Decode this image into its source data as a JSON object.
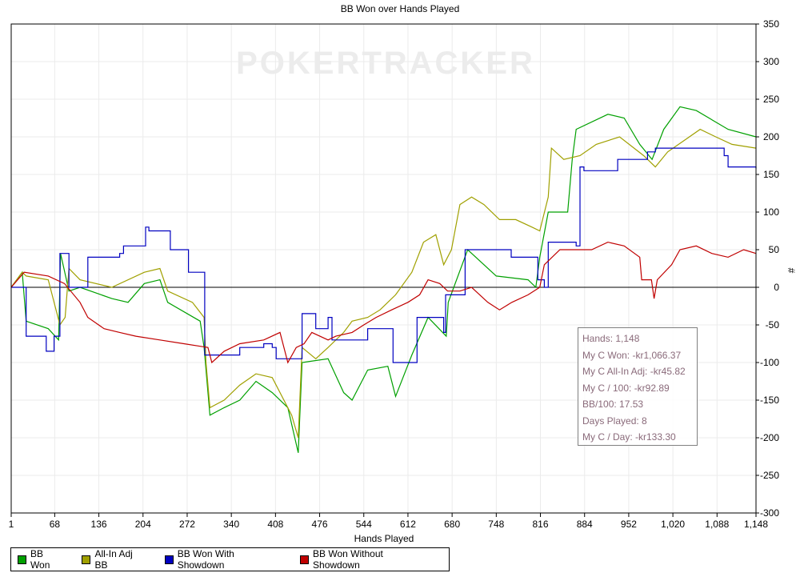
{
  "chart_data": {
    "type": "line",
    "title": "BB Won over Hands Played",
    "xlabel": "Hands Played",
    "ylabel": "#",
    "xlim": [
      1,
      1148
    ],
    "ylim": [
      -300,
      350
    ],
    "xticks": [
      "1",
      "68",
      "136",
      "204",
      "272",
      "340",
      "408",
      "476",
      "544",
      "612",
      "680",
      "748",
      "816",
      "884",
      "952",
      "1,020",
      "1,088",
      "1,148"
    ],
    "xtick_values": [
      1,
      68,
      136,
      204,
      272,
      340,
      408,
      476,
      544,
      612,
      680,
      748,
      816,
      884,
      952,
      1020,
      1088,
      1148
    ],
    "yticks": [
      350,
      300,
      250,
      200,
      150,
      100,
      50,
      0,
      -50,
      -100,
      -150,
      -200,
      -250,
      -300
    ],
    "grid": true,
    "watermark": "POKERTRACKER",
    "legend_position": "bottom",
    "series": [
      {
        "name": "BB Won",
        "color": "#00a000",
        "step": false,
        "points": [
          [
            1,
            0
          ],
          [
            18,
            20
          ],
          [
            24,
            -45
          ],
          [
            58,
            -55
          ],
          [
            74,
            -70
          ],
          [
            77,
            45
          ],
          [
            90,
            -5
          ],
          [
            107,
            0
          ],
          [
            156,
            -15
          ],
          [
            181,
            -20
          ],
          [
            206,
            5
          ],
          [
            230,
            10
          ],
          [
            242,
            -20
          ],
          [
            292,
            -45
          ],
          [
            298,
            -80
          ],
          [
            307,
            -170
          ],
          [
            329,
            -160
          ],
          [
            353,
            -150
          ],
          [
            378,
            -125
          ],
          [
            403,
            -140
          ],
          [
            427,
            -160
          ],
          [
            443,
            -220
          ],
          [
            449,
            -100
          ],
          [
            489,
            -95
          ],
          [
            513,
            -140
          ],
          [
            526,
            -150
          ],
          [
            550,
            -110
          ],
          [
            581,
            -105
          ],
          [
            593,
            -145
          ],
          [
            618,
            -90
          ],
          [
            643,
            -40
          ],
          [
            671,
            -65
          ],
          [
            674,
            -20
          ],
          [
            704,
            50
          ],
          [
            748,
            15
          ],
          [
            797,
            10
          ],
          [
            809,
            0
          ],
          [
            815,
            40
          ],
          [
            828,
            100
          ],
          [
            858,
            100
          ],
          [
            865,
            170
          ],
          [
            871,
            210
          ],
          [
            920,
            230
          ],
          [
            945,
            225
          ],
          [
            969,
            190
          ],
          [
            988,
            170
          ],
          [
            1006,
            210
          ],
          [
            1031,
            240
          ],
          [
            1056,
            235
          ],
          [
            1105,
            210
          ],
          [
            1148,
            200
          ]
        ]
      },
      {
        "name": "All-In Adj BB",
        "color": "#a0a000",
        "step": false,
        "points": [
          [
            1,
            0
          ],
          [
            18,
            20
          ],
          [
            24,
            15
          ],
          [
            58,
            10
          ],
          [
            76,
            -50
          ],
          [
            84,
            -40
          ],
          [
            90,
            25
          ],
          [
            107,
            10
          ],
          [
            156,
            0
          ],
          [
            206,
            20
          ],
          [
            230,
            25
          ],
          [
            242,
            -5
          ],
          [
            280,
            -20
          ],
          [
            298,
            -40
          ],
          [
            301,
            -100
          ],
          [
            307,
            -160
          ],
          [
            329,
            -150
          ],
          [
            353,
            -130
          ],
          [
            378,
            -115
          ],
          [
            403,
            -120
          ],
          [
            421,
            -150
          ],
          [
            433,
            -170
          ],
          [
            443,
            -200
          ],
          [
            449,
            -80
          ],
          [
            470,
            -95
          ],
          [
            489,
            -80
          ],
          [
            513,
            -60
          ],
          [
            526,
            -45
          ],
          [
            550,
            -40
          ],
          [
            569,
            -30
          ],
          [
            593,
            -10
          ],
          [
            618,
            20
          ],
          [
            636,
            60
          ],
          [
            655,
            70
          ],
          [
            667,
            30
          ],
          [
            679,
            50
          ],
          [
            692,
            110
          ],
          [
            710,
            120
          ],
          [
            729,
            110
          ],
          [
            753,
            90
          ],
          [
            778,
            90
          ],
          [
            803,
            80
          ],
          [
            815,
            75
          ],
          [
            828,
            120
          ],
          [
            833,
            185
          ],
          [
            852,
            170
          ],
          [
            877,
            175
          ],
          [
            902,
            190
          ],
          [
            938,
            200
          ],
          [
            975,
            175
          ],
          [
            993,
            160
          ],
          [
            1012,
            180
          ],
          [
            1037,
            195
          ],
          [
            1062,
            210
          ],
          [
            1086,
            200
          ],
          [
            1111,
            190
          ],
          [
            1148,
            185
          ]
        ]
      },
      {
        "name": "BB Won With Showdown",
        "color": "#0000c0",
        "step": true,
        "points": [
          [
            1,
            0
          ],
          [
            24,
            -65
          ],
          [
            51,
            -65
          ],
          [
            55,
            -85
          ],
          [
            67,
            -65
          ],
          [
            76,
            45
          ],
          [
            87,
            45
          ],
          [
            90,
            0
          ],
          [
            119,
            40
          ],
          [
            168,
            45
          ],
          [
            174,
            55
          ],
          [
            205,
            55
          ],
          [
            208,
            80
          ],
          [
            213,
            75
          ],
          [
            242,
            75
          ],
          [
            246,
            50
          ],
          [
            273,
            50
          ],
          [
            274,
            20
          ],
          [
            298,
            20
          ],
          [
            299,
            -90
          ],
          [
            341,
            -90
          ],
          [
            353,
            -80
          ],
          [
            390,
            -75
          ],
          [
            403,
            -80
          ],
          [
            409,
            -95
          ],
          [
            446,
            -95
          ],
          [
            449,
            -35
          ],
          [
            470,
            -55
          ],
          [
            489,
            -40
          ],
          [
            495,
            -70
          ],
          [
            526,
            -70
          ],
          [
            550,
            -55
          ],
          [
            587,
            -55
          ],
          [
            589,
            -100
          ],
          [
            624,
            -100
          ],
          [
            626,
            -40
          ],
          [
            660,
            -40
          ],
          [
            667,
            -60
          ],
          [
            670,
            -10
          ],
          [
            698,
            -10
          ],
          [
            700,
            50
          ],
          [
            747,
            50
          ],
          [
            771,
            40
          ],
          [
            809,
            40
          ],
          [
            812,
            10
          ],
          [
            822,
            0
          ],
          [
            828,
            60
          ],
          [
            865,
            60
          ],
          [
            871,
            55
          ],
          [
            877,
            160
          ],
          [
            883,
            155
          ],
          [
            932,
            155
          ],
          [
            935,
            170
          ],
          [
            969,
            170
          ],
          [
            981,
            180
          ],
          [
            993,
            185
          ],
          [
            1092,
            185
          ],
          [
            1099,
            175
          ],
          [
            1105,
            160
          ],
          [
            1148,
            158
          ]
        ]
      },
      {
        "name": "BB Won Without Showdown",
        "color": "#c00000",
        "step": false,
        "points": [
          [
            1,
            0
          ],
          [
            21,
            20
          ],
          [
            58,
            15
          ],
          [
            83,
            5
          ],
          [
            107,
            -20
          ],
          [
            119,
            -40
          ],
          [
            144,
            -55
          ],
          [
            168,
            -60
          ],
          [
            193,
            -65
          ],
          [
            230,
            -70
          ],
          [
            267,
            -75
          ],
          [
            304,
            -80
          ],
          [
            310,
            -100
          ],
          [
            329,
            -85
          ],
          [
            353,
            -75
          ],
          [
            390,
            -70
          ],
          [
            415,
            -60
          ],
          [
            427,
            -100
          ],
          [
            440,
            -80
          ],
          [
            452,
            -75
          ],
          [
            464,
            -60
          ],
          [
            489,
            -70
          ],
          [
            501,
            -65
          ],
          [
            526,
            -60
          ],
          [
            544,
            -50
          ],
          [
            563,
            -40
          ],
          [
            587,
            -30
          ],
          [
            612,
            -20
          ],
          [
            630,
            -10
          ],
          [
            643,
            10
          ],
          [
            661,
            5
          ],
          [
            673,
            -5
          ],
          [
            692,
            -5
          ],
          [
            710,
            0
          ],
          [
            735,
            -20
          ],
          [
            753,
            -30
          ],
          [
            772,
            -20
          ],
          [
            797,
            -10
          ],
          [
            815,
            0
          ],
          [
            822,
            30
          ],
          [
            846,
            50
          ],
          [
            871,
            50
          ],
          [
            895,
            50
          ],
          [
            920,
            60
          ],
          [
            945,
            55
          ],
          [
            969,
            40
          ],
          [
            972,
            10
          ],
          [
            987,
            10
          ],
          [
            991,
            -15
          ],
          [
            996,
            10
          ],
          [
            1018,
            30
          ],
          [
            1031,
            50
          ],
          [
            1056,
            55
          ],
          [
            1080,
            45
          ],
          [
            1105,
            40
          ],
          [
            1129,
            50
          ],
          [
            1148,
            45
          ]
        ]
      }
    ]
  },
  "stats": [
    "Hands: 1,148",
    "My C Won: -kr1,066.37",
    "My C All-In Adj: -kr45.82",
    "My C / 100: -kr92.89",
    "BB/100: 17.53",
    "Days Played: 8",
    "My C / Day: -kr133.30"
  ]
}
